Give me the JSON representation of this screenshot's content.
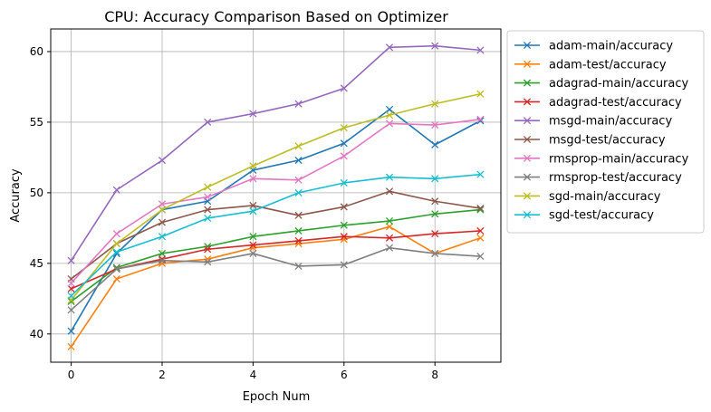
{
  "chart_data": {
    "type": "line",
    "title": "CPU: Accuracy Comparison Based on Optimizer",
    "xlabel": "Epoch Num",
    "ylabel": "Accuracy",
    "xlim": [
      -0.45,
      9.45
    ],
    "ylim": [
      38,
      61.6
    ],
    "xticks": [
      0,
      2,
      4,
      6,
      8
    ],
    "yticks": [
      40,
      45,
      50,
      55,
      60
    ],
    "grid": true,
    "legend_position": "outside-right",
    "marker": "x",
    "x": [
      0,
      1,
      2,
      3,
      4,
      5,
      6,
      7,
      8,
      9
    ],
    "series": [
      {
        "name": "adam-main/accuracy",
        "color": "#1f77b4",
        "values": [
          40.2,
          45.7,
          48.8,
          49.4,
          51.6,
          52.3,
          53.5,
          55.9,
          53.4,
          55.1
        ]
      },
      {
        "name": "adam-test/accuracy",
        "color": "#ff7f0e",
        "values": [
          39.1,
          43.9,
          45.0,
          45.3,
          46.1,
          46.4,
          46.7,
          47.6,
          45.7,
          46.8
        ]
      },
      {
        "name": "adagrad-main/accuracy",
        "color": "#2ca02c",
        "values": [
          42.3,
          44.7,
          45.7,
          46.2,
          46.9,
          47.3,
          47.7,
          48.0,
          48.5,
          48.8
        ]
      },
      {
        "name": "adagrad-test/accuracy",
        "color": "#d62728",
        "values": [
          43.2,
          44.6,
          45.3,
          46.0,
          46.3,
          46.6,
          46.9,
          46.8,
          47.1,
          47.3
        ]
      },
      {
        "name": "msgd-main/accuracy",
        "color": "#9467bd",
        "values": [
          45.2,
          50.2,
          52.3,
          55.0,
          55.6,
          56.3,
          57.4,
          60.3,
          60.4,
          60.1
        ]
      },
      {
        "name": "msgd-test/accuracy",
        "color": "#8c564b",
        "values": [
          43.9,
          46.4,
          47.9,
          48.8,
          49.1,
          48.4,
          49.0,
          50.1,
          49.4,
          48.9
        ]
      },
      {
        "name": "rmsprop-main/accuracy",
        "color": "#e377c2",
        "values": [
          43.6,
          47.1,
          49.2,
          49.7,
          51.0,
          50.9,
          52.6,
          54.9,
          54.8,
          55.2
        ]
      },
      {
        "name": "rmsprop-test/accuracy",
        "color": "#7f7f7f",
        "values": [
          41.7,
          44.6,
          45.2,
          45.1,
          45.7,
          44.8,
          44.9,
          46.1,
          45.7,
          45.5
        ]
      },
      {
        "name": "sgd-main/accuracy",
        "color": "#bcbd22",
        "values": [
          42.4,
          46.4,
          48.8,
          50.4,
          51.9,
          53.3,
          54.6,
          55.5,
          56.3,
          57.0
        ]
      },
      {
        "name": "sgd-test/accuracy",
        "color": "#17becf",
        "values": [
          42.7,
          45.8,
          46.9,
          48.2,
          48.7,
          50.0,
          50.7,
          51.1,
          51.0,
          51.3
        ]
      }
    ]
  }
}
